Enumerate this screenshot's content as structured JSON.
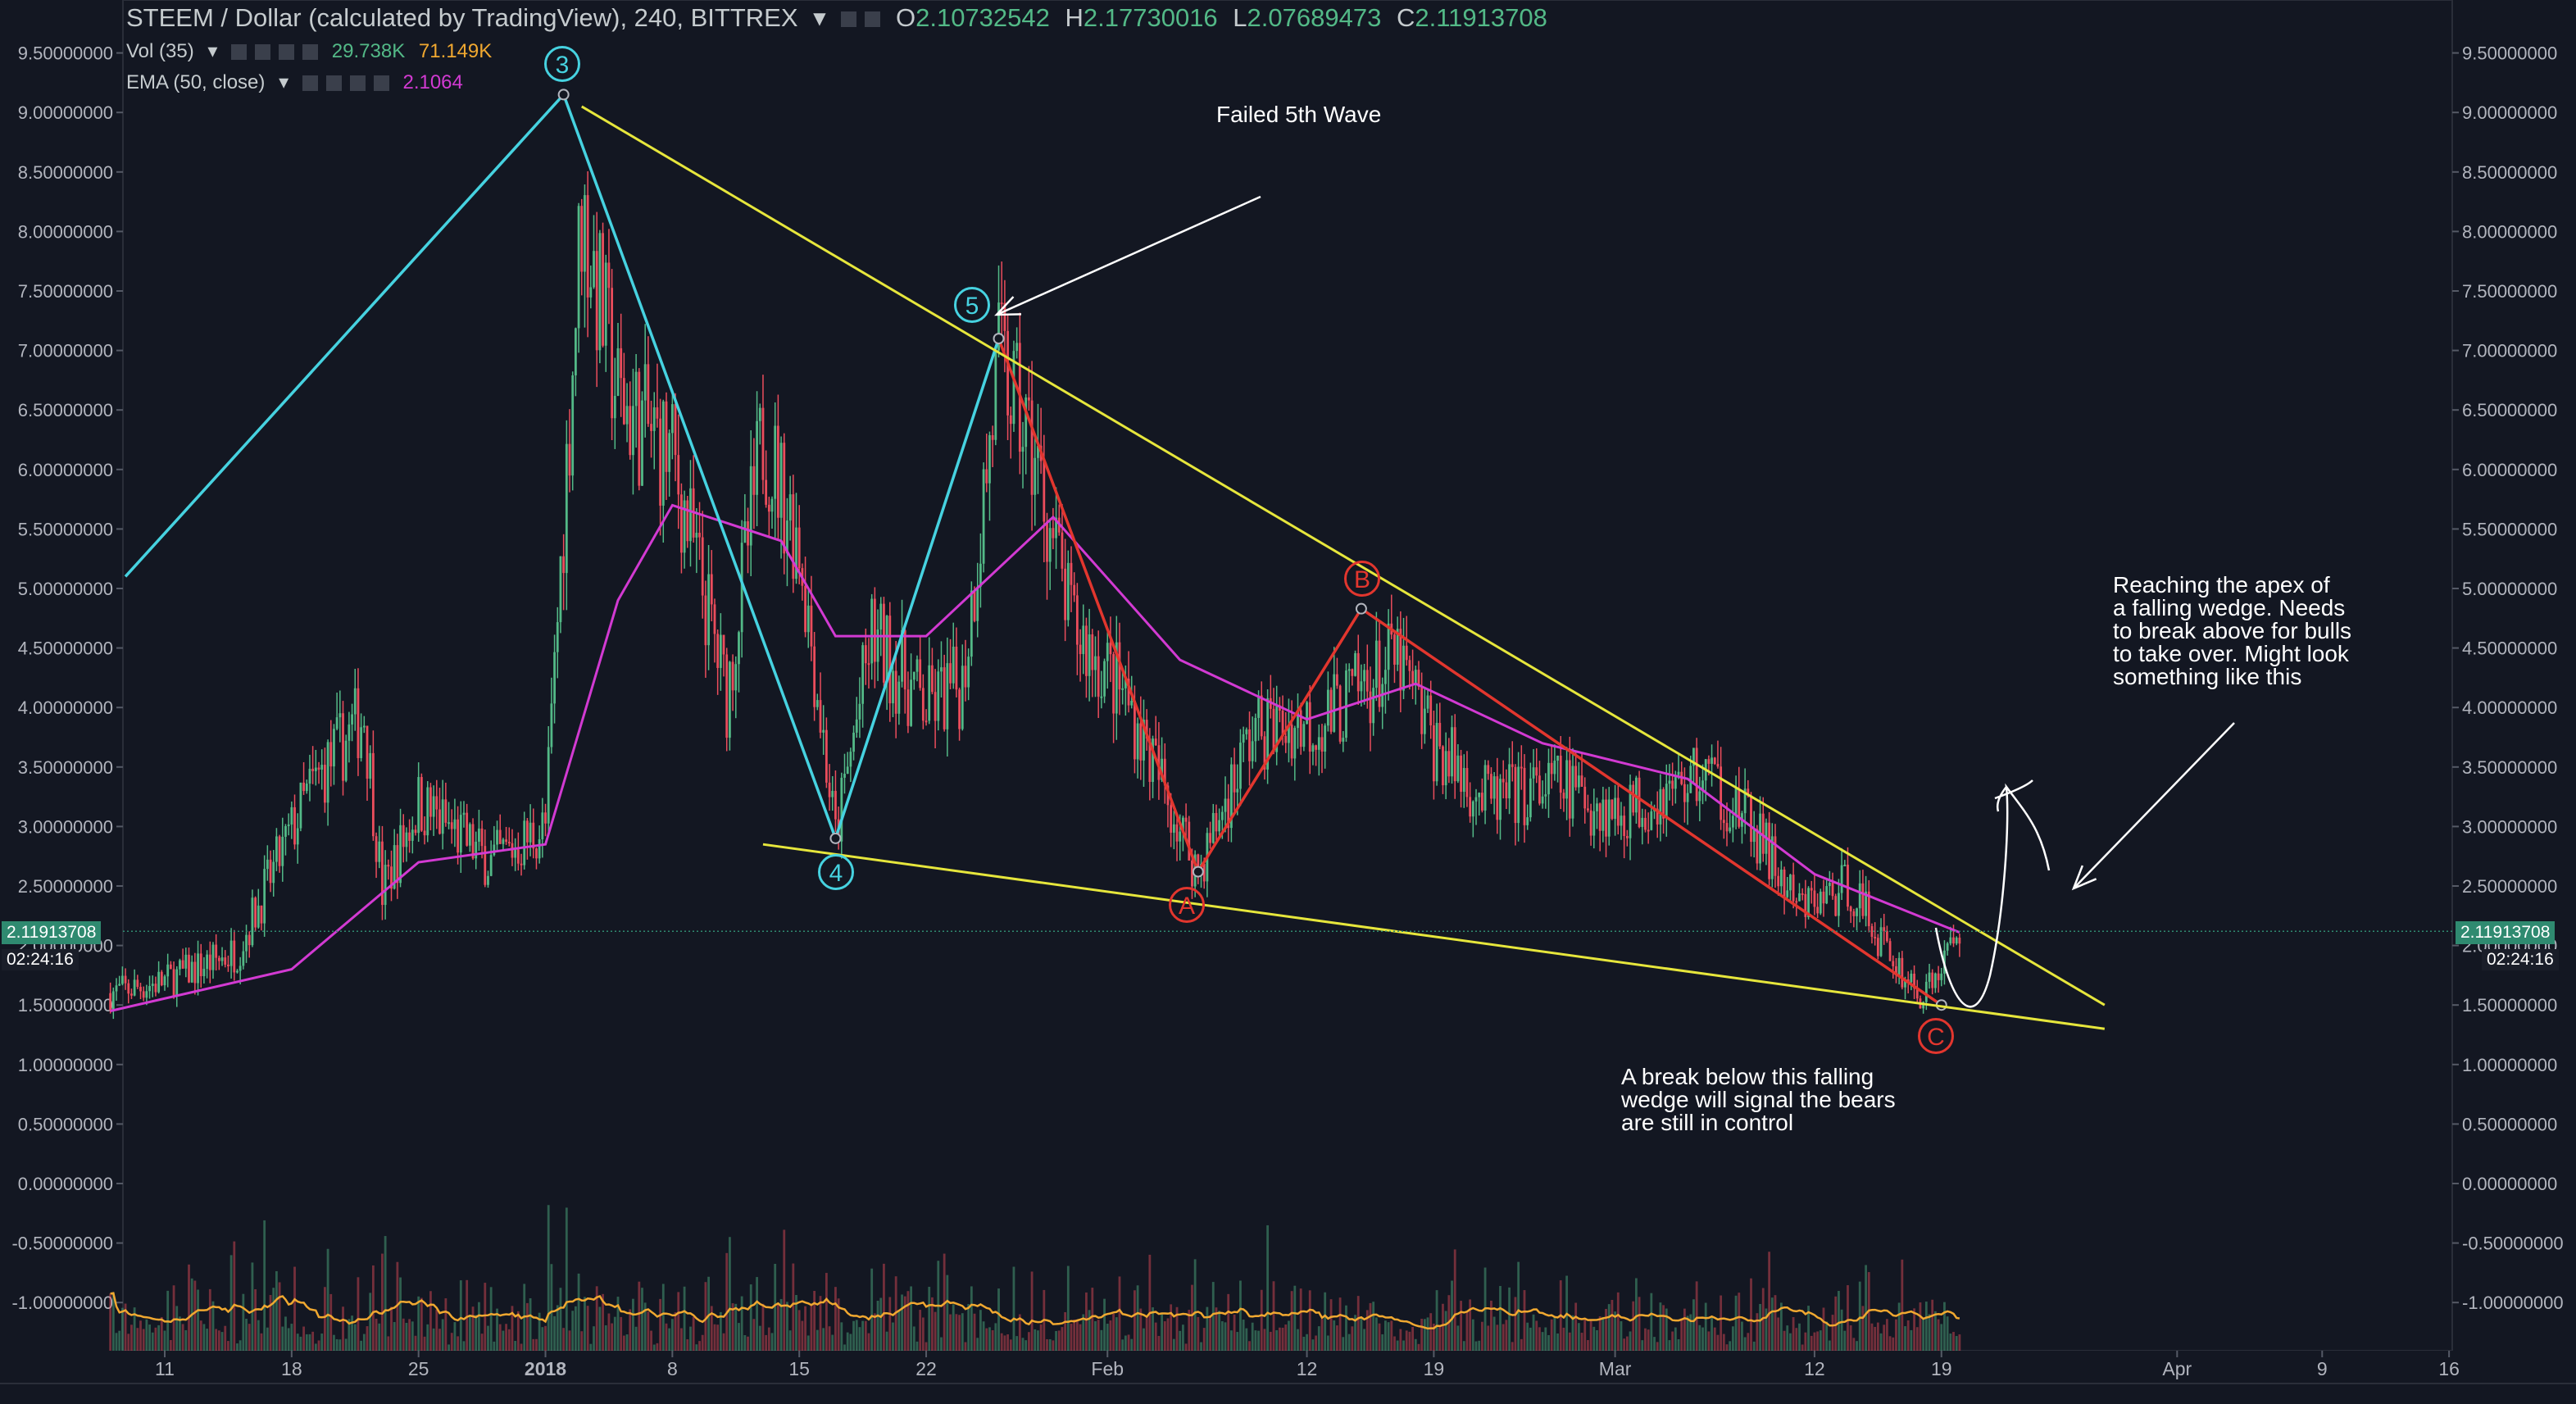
{
  "header": {
    "symbol_title": "STEEM / Dollar (calculated by TradingView), 240, BITTREX",
    "ohlc": {
      "o_label": "O",
      "o_value": "2.10732542",
      "h_label": "H",
      "h_value": "2.17730016",
      "l_label": "L",
      "l_value": "2.07689473",
      "c_label": "C",
      "c_value": "2.11913708"
    },
    "indicators": [
      {
        "name": "Vol (35)",
        "values": [
          "29.738K",
          "71.149K"
        ]
      },
      {
        "name": "EMA (50, close)",
        "values": [
          "2.1064"
        ]
      }
    ]
  },
  "price_tag": {
    "value": "2.11913708",
    "timer": "02:24:16"
  },
  "annotations": {
    "failed_wave": "Failed 5th Wave",
    "apex_note": "Reaching the apex of\na falling wedge. Needs\nto break above for bulls\nto take over. Might look\nsomething like this",
    "break_note": "A break below this falling\nwedge will signal the bears\nare still in control",
    "wave_labels": [
      "3",
      "4",
      "5",
      "A",
      "B",
      "C"
    ]
  },
  "colors": {
    "background": "#131722",
    "up_candle": "#53b987",
    "down_candle": "#eb4d5c",
    "ema": "#d23ad2",
    "trendline": "#e6e63c",
    "impulse": "#46d2e0",
    "correction": "#e2362e",
    "volume_ma": "#f0a830"
  },
  "chart_data": {
    "type": "candlestick",
    "title": "STEEM / Dollar (calculated by TradingView), 240, BITTREX",
    "yaxis": {
      "ticks": [
        "9.50000000",
        "9.00000000",
        "8.50000000",
        "8.00000000",
        "7.50000000",
        "7.00000000",
        "6.50000000",
        "6.00000000",
        "5.50000000",
        "5.00000000",
        "4.50000000",
        "4.00000000",
        "3.50000000",
        "3.00000000",
        "2.50000000",
        "2.00000000",
        "1.50000000",
        "1.00000000",
        "0.50000000",
        "0.00000000",
        "-0.50000000",
        "-1.00000000"
      ],
      "range": [
        -1.35,
        9.75
      ]
    },
    "xaxis": {
      "ticks": [
        "11",
        "18",
        "25",
        "2018",
        "8",
        "15",
        "22",
        "Feb",
        "12",
        "19",
        "Mar",
        "12",
        "19",
        "Apr",
        "9",
        "16"
      ]
    },
    "price_path": [
      [
        "2017-12-08",
        1.6
      ],
      [
        "2017-12-11",
        1.7
      ],
      [
        "2017-12-15",
        1.95
      ],
      [
        "2017-12-19",
        3.3
      ],
      [
        "2017-12-22",
        3.95
      ],
      [
        "2017-12-23",
        2.45
      ],
      [
        "2017-12-25",
        3.2
      ],
      [
        "2017-12-29",
        2.7
      ],
      [
        "2018-01-01",
        3.0
      ],
      [
        "2018-01-03",
        8.2
      ],
      [
        "2018-01-05",
        6.6
      ],
      [
        "2018-01-08",
        6.1
      ],
      [
        "2018-01-11",
        4.1
      ],
      [
        "2018-01-13",
        6.3
      ],
      [
        "2018-01-15",
        5.4
      ],
      [
        "2018-01-17",
        2.9
      ],
      [
        "2018-01-19",
        4.6
      ],
      [
        "2018-01-22",
        4.0
      ],
      [
        "2018-01-24",
        4.2
      ],
      [
        "2018-01-26",
        6.9
      ],
      [
        "2018-01-28",
        6.1
      ],
      [
        "2018-01-30",
        4.7
      ],
      [
        "2018-02-02",
        4.1
      ],
      [
        "2018-02-06",
        2.62
      ],
      [
        "2018-02-09",
        3.8
      ],
      [
        "2018-02-13",
        3.9
      ],
      [
        "2018-02-17",
        4.4
      ],
      [
        "2018-02-19",
        3.7
      ],
      [
        "2018-02-22",
        3.2
      ],
      [
        "2018-02-26",
        3.35
      ],
      [
        "2018-03-01",
        3.1
      ],
      [
        "2018-03-06",
        3.45
      ],
      [
        "2018-03-09",
        2.9
      ],
      [
        "2018-03-11",
        2.3
      ],
      [
        "2018-03-14",
        2.5
      ],
      [
        "2018-03-16",
        1.95
      ],
      [
        "2018-03-18",
        1.55
      ],
      [
        "2018-03-20",
        2.12
      ]
    ],
    "ema_50": [
      [
        "2017-12-08",
        1.45
      ],
      [
        "2017-12-18",
        1.8
      ],
      [
        "2017-12-25",
        2.7
      ],
      [
        "2018-01-01",
        2.85
      ],
      [
        "2018-01-05",
        4.9
      ],
      [
        "2018-01-08",
        5.7
      ],
      [
        "2018-01-14",
        5.4
      ],
      [
        "2018-01-17",
        4.6
      ],
      [
        "2018-01-22",
        4.6
      ],
      [
        "2018-01-29",
        5.6
      ],
      [
        "2018-02-05",
        4.4
      ],
      [
        "2018-02-12",
        3.9
      ],
      [
        "2018-02-18",
        4.2
      ],
      [
        "2018-02-25",
        3.7
      ],
      [
        "2018-03-05",
        3.4
      ],
      [
        "2018-03-12",
        2.6
      ],
      [
        "2018-03-20",
        2.11
      ]
    ],
    "wave_points": [
      {
        "label": "3",
        "date": "2018-01-02",
        "price": 9.15
      },
      {
        "label": "4",
        "date": "2018-01-17",
        "price": 2.9
      },
      {
        "label": "5",
        "date": "2018-01-26",
        "price": 7.1
      },
      {
        "label": "A",
        "date": "2018-02-06",
        "price": 2.62
      },
      {
        "label": "B",
        "date": "2018-02-15",
        "price": 4.83
      },
      {
        "label": "C",
        "date": "2018-03-19",
        "price": 1.5
      }
    ],
    "trendlines": [
      {
        "name": "upper",
        "from": [
          "2018-01-03",
          9.05
        ],
        "to": [
          "2018-03-28",
          1.5
        ]
      },
      {
        "name": "lower",
        "from": [
          "2018-01-13",
          2.85
        ],
        "to": [
          "2018-03-28",
          1.3
        ]
      }
    ],
    "last_close": 2.11913708
  }
}
